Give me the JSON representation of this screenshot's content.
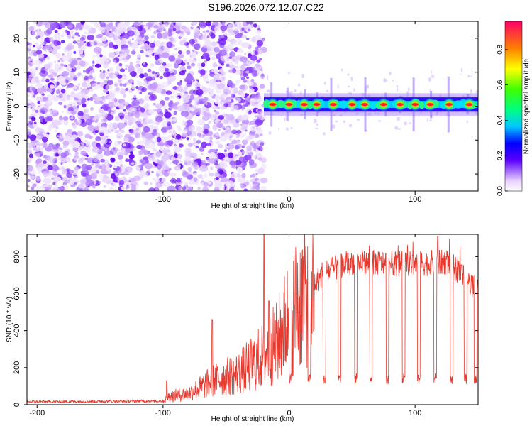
{
  "chart_data": [
    {
      "type": "heatmap",
      "title": "S196.2026.072.12.07.C22",
      "xlabel": "Height of straight line (km)",
      "ylabel": "Frequency (Hz)",
      "xlim": [
        -208,
        150
      ],
      "ylim": [
        -25,
        25
      ],
      "xticks": [
        {
          "value": -200,
          "label": "-200"
        },
        {
          "value": -100,
          "label": "-100"
        },
        {
          "value": 0,
          "label": "0"
        },
        {
          "value": 100,
          "label": "100"
        }
      ],
      "yticks": [
        {
          "value": 20,
          "label": "20"
        },
        {
          "value": 10,
          "label": "10"
        },
        {
          "value": 0,
          "label": "0"
        },
        {
          "value": -10,
          "label": "-10"
        },
        {
          "value": -20,
          "label": "-20"
        }
      ],
      "noise_region": {
        "x_start": -208,
        "x_end": -20
      },
      "signal_band": {
        "x_start": -20,
        "x_end": 150,
        "center_hz": 0.5,
        "half_width_hz": 1.5
      },
      "bright_segments_x": [
        -13,
        0,
        12,
        22,
        35,
        50,
        60,
        75,
        88,
        100,
        112,
        127,
        143
      ],
      "colorbar": {
        "label": "Normalized spectral amplitude",
        "ticks": [
          {
            "value": 0.0,
            "label": "0.0"
          },
          {
            "value": 0.2,
            "label": "0.2"
          },
          {
            "value": 0.4,
            "label": "0.4"
          },
          {
            "value": 0.6,
            "label": "0.6"
          },
          {
            "value": 0.8,
            "label": "0.8"
          }
        ],
        "range": [
          0,
          0.96
        ]
      }
    },
    {
      "type": "line",
      "xlabel": "Height of straight line (km)",
      "ylabel": "SNR (10 * v/v)",
      "xlim": [
        -208,
        150
      ],
      "ylim": [
        0,
        920
      ],
      "xticks": [
        {
          "value": -200,
          "label": "-200"
        },
        {
          "value": -100,
          "label": "-100"
        },
        {
          "value": 0,
          "label": "0"
        },
        {
          "value": 100,
          "label": "100"
        }
      ],
      "yticks": [
        {
          "value": 0,
          "label": "0"
        },
        {
          "value": 200,
          "label": "200"
        },
        {
          "value": 400,
          "label": "400"
        },
        {
          "value": 600,
          "label": "600"
        },
        {
          "value": 800,
          "label": "800"
        }
      ],
      "color": "#e8392e",
      "series_profile": [
        {
          "x": -208,
          "y": 15
        },
        {
          "x": -100,
          "y": 20
        },
        {
          "x": -95,
          "y": 45
        },
        {
          "x": -80,
          "y": 60
        },
        {
          "x": -60,
          "y": 130
        },
        {
          "x": -40,
          "y": 170
        },
        {
          "x": -25,
          "y": 240
        },
        {
          "x": -10,
          "y": 330
        },
        {
          "x": 0,
          "y": 480
        },
        {
          "x": 15,
          "y": 630
        },
        {
          "x": 30,
          "y": 720
        },
        {
          "x": 50,
          "y": 770
        },
        {
          "x": 100,
          "y": 760
        },
        {
          "x": 125,
          "y": 770
        },
        {
          "x": 135,
          "y": 720
        },
        {
          "x": 150,
          "y": 610
        }
      ],
      "spikes": [
        {
          "x": -97,
          "y": 130
        },
        {
          "x": -61,
          "y": 460
        },
        {
          "x": -20,
          "y": 920
        },
        {
          "x": -16,
          "y": 560
        },
        {
          "x": 118,
          "y": 910
        }
      ],
      "dips_x": [
        1,
        16,
        28,
        40,
        53,
        65,
        78,
        91,
        103,
        116,
        129,
        140,
        148
      ],
      "dip_level": 140
    }
  ]
}
